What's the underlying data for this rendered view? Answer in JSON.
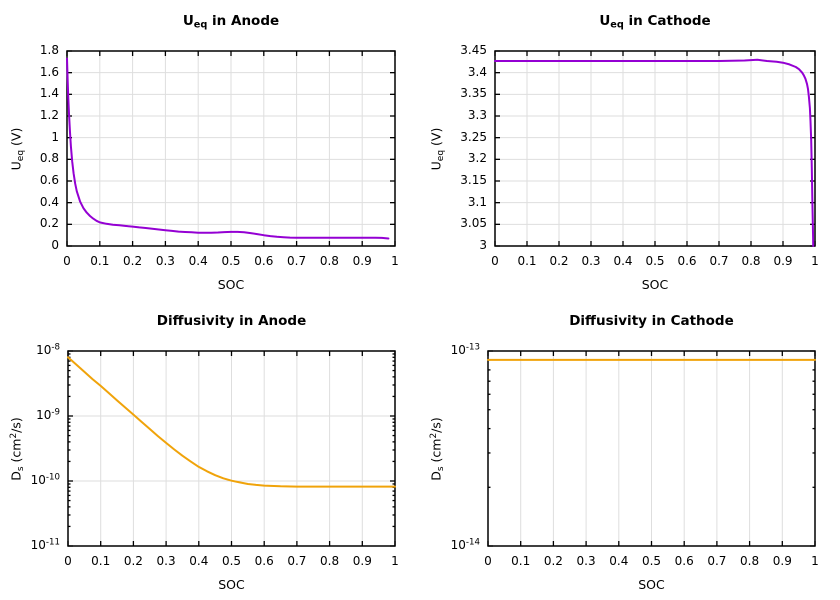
{
  "figure": {
    "background": "#ffffff",
    "frame_color": "#000000",
    "grid_color": "#dedede",
    "tick_color": "#000000",
    "curve_purple": "#9400d3",
    "curve_orange": "#f0a30a"
  },
  "chart_data": [
    {
      "id": "ueq-anode",
      "type": "line",
      "title": "U_{eq} in Anode",
      "xlabel": "SOC",
      "ylabel": "U_{eq} (V)",
      "xscale": "linear",
      "yscale": "linear",
      "xlim": [
        0,
        1
      ],
      "ylim": [
        0,
        1.8
      ],
      "grid": true,
      "legend": "none",
      "xticks": {
        "values": [
          0,
          0.1,
          0.2,
          0.3,
          0.4,
          0.5,
          0.6,
          0.7,
          0.8,
          0.9,
          1
        ],
        "labels": [
          "0",
          "0.1",
          "0.2",
          "0.3",
          "0.4",
          "0.5",
          "0.6",
          "0.7",
          "0.8",
          "0.9",
          "1"
        ]
      },
      "yticks": {
        "values": [
          0,
          0.2,
          0.4,
          0.6,
          0.8,
          1,
          1.2,
          1.4,
          1.6,
          1.8
        ],
        "labels": [
          "0",
          "0.2",
          "0.4",
          "0.6",
          "0.8",
          "1",
          "1.2",
          "1.4",
          "1.6",
          "1.8"
        ]
      },
      "series": [
        {
          "color": "#9400d3",
          "points": [
            [
              0,
              1.73
            ],
            [
              0.002,
              1.52
            ],
            [
              0.004,
              1.36
            ],
            [
              0.006,
              1.22
            ],
            [
              0.009,
              1.05
            ],
            [
              0.012,
              0.92
            ],
            [
              0.016,
              0.78
            ],
            [
              0.02,
              0.67
            ],
            [
              0.025,
              0.575
            ],
            [
              0.03,
              0.505
            ],
            [
              0.04,
              0.41
            ],
            [
              0.05,
              0.35
            ],
            [
              0.06,
              0.308
            ],
            [
              0.07,
              0.277
            ],
            [
              0.08,
              0.253
            ],
            [
              0.09,
              0.233
            ],
            [
              0.1,
              0.218
            ],
            [
              0.12,
              0.205
            ],
            [
              0.14,
              0.197
            ],
            [
              0.16,
              0.191
            ],
            [
              0.18,
              0.185
            ],
            [
              0.2,
              0.179
            ],
            [
              0.22,
              0.172
            ],
            [
              0.24,
              0.166
            ],
            [
              0.26,
              0.159
            ],
            [
              0.28,
              0.152
            ],
            [
              0.3,
              0.146
            ],
            [
              0.32,
              0.139
            ],
            [
              0.34,
              0.133
            ],
            [
              0.36,
              0.129
            ],
            [
              0.38,
              0.126
            ],
            [
              0.4,
              0.123
            ],
            [
              0.42,
              0.122
            ],
            [
              0.44,
              0.123
            ],
            [
              0.46,
              0.125
            ],
            [
              0.48,
              0.128
            ],
            [
              0.5,
              0.13
            ],
            [
              0.52,
              0.13
            ],
            [
              0.54,
              0.127
            ],
            [
              0.56,
              0.119
            ],
            [
              0.58,
              0.11
            ],
            [
              0.6,
              0.1
            ],
            [
              0.62,
              0.091
            ],
            [
              0.64,
              0.085
            ],
            [
              0.66,
              0.081
            ],
            [
              0.68,
              0.078
            ],
            [
              0.7,
              0.077
            ],
            [
              0.75,
              0.076
            ],
            [
              0.8,
              0.076
            ],
            [
              0.85,
              0.076
            ],
            [
              0.9,
              0.077
            ],
            [
              0.94,
              0.077
            ],
            [
              0.96,
              0.075
            ],
            [
              0.98,
              0.069
            ]
          ]
        }
      ]
    },
    {
      "id": "ueq-cathode",
      "type": "line",
      "title": "U_{eq} in Cathode",
      "xlabel": "SOC",
      "ylabel": "U_{eq} (V)",
      "xscale": "linear",
      "yscale": "linear",
      "xlim": [
        0,
        1
      ],
      "ylim": [
        3,
        3.45
      ],
      "grid": true,
      "legend": "none",
      "xticks": {
        "values": [
          0,
          0.1,
          0.2,
          0.3,
          0.4,
          0.5,
          0.6,
          0.7,
          0.8,
          0.9,
          1
        ],
        "labels": [
          "0",
          "0.1",
          "0.2",
          "0.3",
          "0.4",
          "0.5",
          "0.6",
          "0.7",
          "0.8",
          "0.9",
          "1"
        ]
      },
      "yticks": {
        "values": [
          3,
          3.05,
          3.1,
          3.15,
          3.2,
          3.25,
          3.3,
          3.35,
          3.4,
          3.45
        ],
        "labels": [
          "3",
          "3.05",
          "3.1",
          "3.15",
          "3.2",
          "3.25",
          "3.3",
          "3.35",
          "3.4",
          "3.45"
        ]
      },
      "series": [
        {
          "color": "#9400d3",
          "points": [
            [
              0,
              3.427
            ],
            [
              0.1,
              3.427
            ],
            [
              0.2,
              3.427
            ],
            [
              0.3,
              3.427
            ],
            [
              0.4,
              3.427
            ],
            [
              0.5,
              3.427
            ],
            [
              0.6,
              3.427
            ],
            [
              0.7,
              3.427
            ],
            [
              0.78,
              3.428
            ],
            [
              0.82,
              3.43
            ],
            [
              0.85,
              3.427
            ],
            [
              0.88,
              3.425
            ],
            [
              0.9,
              3.423
            ],
            [
              0.92,
              3.419
            ],
            [
              0.94,
              3.413
            ],
            [
              0.95,
              3.408
            ],
            [
              0.96,
              3.4
            ],
            [
              0.965,
              3.394
            ],
            [
              0.97,
              3.386
            ],
            [
              0.975,
              3.374
            ],
            [
              0.978,
              3.362
            ],
            [
              0.981,
              3.344
            ],
            [
              0.984,
              3.318
            ],
            [
              0.986,
              3.288
            ],
            [
              0.988,
              3.244
            ],
            [
              0.99,
              3.18
            ],
            [
              0.992,
              3.1
            ],
            [
              0.994,
              3.02
            ],
            [
              0.9945,
              3.0
            ]
          ]
        }
      ]
    },
    {
      "id": "diffusivity-anode",
      "type": "line",
      "title": "Diffusivity in Anode",
      "xlabel": "SOC",
      "ylabel": "D_{s} (cm^{2}/s)",
      "xscale": "linear",
      "yscale": "log",
      "xlim": [
        0,
        1
      ],
      "ylim": [
        1e-11,
        1e-08
      ],
      "grid": true,
      "legend": "none",
      "xticks": {
        "values": [
          0,
          0.1,
          0.2,
          0.3,
          0.4,
          0.5,
          0.6,
          0.7,
          0.8,
          0.9,
          1
        ],
        "labels": [
          "0",
          "0.1",
          "0.2",
          "0.3",
          "0.4",
          "0.5",
          "0.6",
          "0.7",
          "0.8",
          "0.9",
          "1"
        ]
      },
      "yticks": {
        "values": [
          1e-11,
          1e-10,
          1e-09,
          1e-08
        ],
        "labels": [
          "10^{-11}",
          "10^{-10}",
          "10^{-9}",
          "10^{-8}"
        ]
      },
      "series": [
        {
          "color": "#f0a30a",
          "points": [
            [
              0,
              8e-09
            ],
            [
              0.025,
              6.2e-09
            ],
            [
              0.05,
              4.8e-09
            ],
            [
              0.075,
              3.7e-09
            ],
            [
              0.1,
              2.9e-09
            ],
            [
              0.125,
              2.25e-09
            ],
            [
              0.15,
              1.74e-09
            ],
            [
              0.175,
              1.35e-09
            ],
            [
              0.2,
              1.05e-09
            ],
            [
              0.225,
              8.1e-10
            ],
            [
              0.25,
              6.3e-10
            ],
            [
              0.275,
              4.9e-10
            ],
            [
              0.3,
              3.85e-10
            ],
            [
              0.325,
              3.05e-10
            ],
            [
              0.35,
              2.45e-10
            ],
            [
              0.375,
              2e-10
            ],
            [
              0.4,
              1.65e-10
            ],
            [
              0.425,
              1.41e-10
            ],
            [
              0.45,
              1.23e-10
            ],
            [
              0.475,
              1.1e-10
            ],
            [
              0.5,
              1.01e-10
            ],
            [
              0.525,
              9.5e-11
            ],
            [
              0.55,
              9e-11
            ],
            [
              0.575,
              8.7e-11
            ],
            [
              0.6,
              8.5e-11
            ],
            [
              0.65,
              8.3e-11
            ],
            [
              0.7,
              8.2e-11
            ],
            [
              0.75,
              8.2e-11
            ],
            [
              0.8,
              8.2e-11
            ],
            [
              0.85,
              8.2e-11
            ],
            [
              0.9,
              8.2e-11
            ],
            [
              0.95,
              8.2e-11
            ],
            [
              1,
              8.2e-11
            ]
          ]
        }
      ]
    },
    {
      "id": "diffusivity-cathode",
      "type": "line",
      "title": "Diffusivity in Cathode",
      "xlabel": "SOC",
      "ylabel": "D_{s} (cm^{2}/s)",
      "xscale": "linear",
      "yscale": "log",
      "xlim": [
        0,
        1
      ],
      "ylim": [
        1e-14,
        1e-13
      ],
      "grid": true,
      "legend": "none",
      "xticks": {
        "values": [
          0,
          0.1,
          0.2,
          0.3,
          0.4,
          0.5,
          0.6,
          0.7,
          0.8,
          0.9,
          1
        ],
        "labels": [
          "0",
          "0.1",
          "0.2",
          "0.3",
          "0.4",
          "0.5",
          "0.6",
          "0.7",
          "0.8",
          "0.9",
          "1"
        ]
      },
      "yticks": {
        "values": [
          1e-14,
          1e-13
        ],
        "labels": [
          "10^{-14}",
          "10^{-13}"
        ]
      },
      "series": [
        {
          "color": "#f0a30a",
          "points": [
            [
              0,
              9e-14
            ],
            [
              0.25,
              9e-14
            ],
            [
              0.5,
              9e-14
            ],
            [
              0.75,
              9e-14
            ],
            [
              1,
              9e-14
            ]
          ]
        }
      ]
    }
  ]
}
